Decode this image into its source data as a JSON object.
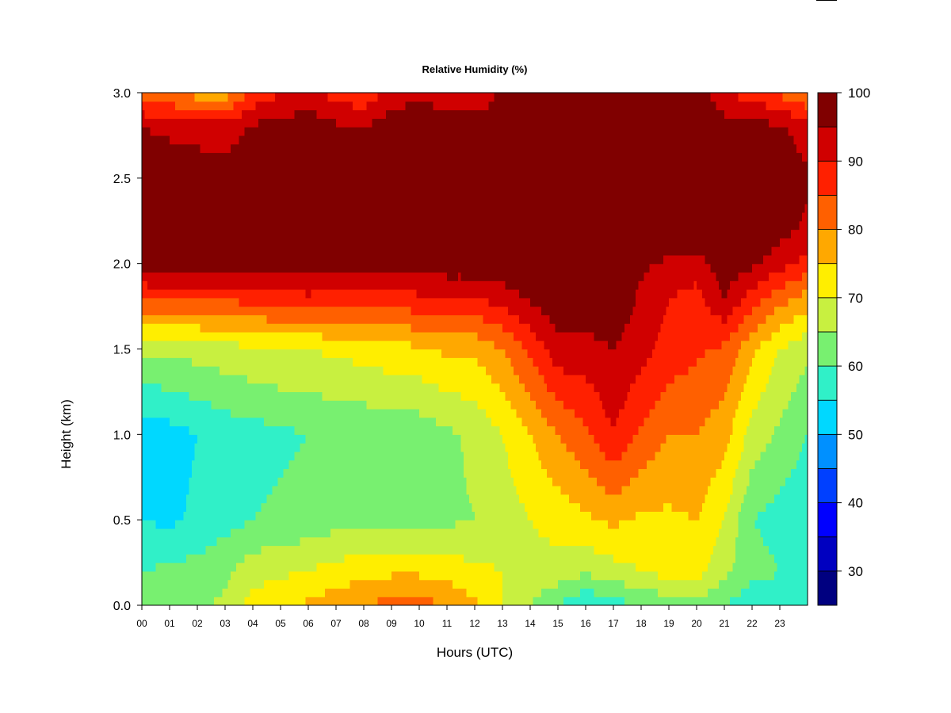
{
  "chart_data": {
    "type": "heatmap",
    "title": "Relative Humidity (%)",
    "xlabel": "Hours (UTC)",
    "ylabel": "Height (km)",
    "xlim": [
      0,
      24
    ],
    "ylim": [
      0,
      3
    ],
    "x_ticks": [
      "00",
      "01",
      "02",
      "03",
      "04",
      "05",
      "06",
      "07",
      "08",
      "09",
      "10",
      "11",
      "12",
      "13",
      "14",
      "15",
      "16",
      "17",
      "18",
      "19",
      "20",
      "21",
      "22",
      "23"
    ],
    "y_ticks": [
      "0.0",
      "0.5",
      "1.0",
      "1.5",
      "2.0",
      "2.5",
      "3.0"
    ],
    "colorbar": {
      "min": 25,
      "max": 100,
      "step": 5,
      "tick_labels": [
        "30",
        "40",
        "50",
        "60",
        "70",
        "80",
        "90",
        "100"
      ],
      "colors": [
        "#000080",
        "#0000c0",
        "#0000ff",
        "#0040ff",
        "#0090ff",
        "#00d8ff",
        "#30f0c8",
        "#78f070",
        "#c8f040",
        "#ffee00",
        "#ffa800",
        "#ff6000",
        "#ff2000",
        "#d00000",
        "#800000"
      ]
    },
    "x_hours": [
      0,
      1,
      2,
      3,
      4,
      5,
      6,
      7,
      8,
      9,
      10,
      11,
      12,
      13,
      14,
      15,
      16,
      17,
      18,
      19,
      20,
      21,
      22,
      23,
      24
    ],
    "y_heights_km": [
      0.0,
      0.2,
      0.5,
      1.0,
      1.5,
      1.8,
      2.0,
      2.2,
      2.5,
      2.8,
      3.0
    ],
    "values": [
      [
        62,
        60,
        55,
        52,
        66,
        85,
        98,
        99,
        98,
        95,
        82
      ],
      [
        63,
        61,
        54,
        53,
        66,
        86,
        98,
        99,
        98,
        94,
        80
      ],
      [
        64,
        62,
        56,
        55,
        67,
        86,
        98,
        99,
        98,
        93,
        78
      ],
      [
        66,
        64,
        58,
        57,
        68,
        86,
        98,
        99,
        98,
        92,
        77
      ],
      [
        72,
        68,
        60,
        58,
        69,
        87,
        98,
        99,
        99,
        96,
        86
      ],
      [
        74,
        69,
        61,
        59,
        70,
        88,
        98,
        99,
        99,
        97,
        90
      ],
      [
        76,
        70,
        62,
        60,
        70,
        89,
        98,
        99,
        99,
        98,
        92
      ],
      [
        78,
        72,
        63,
        61,
        71,
        88,
        98,
        99,
        98,
        96,
        88
      ],
      [
        80,
        73,
        63,
        61,
        72,
        88,
        98,
        99,
        98,
        95,
        86
      ],
      [
        82,
        74,
        64,
        62,
        73,
        88,
        98,
        99,
        99,
        98,
        92
      ],
      [
        82,
        74,
        63,
        62,
        74,
        89,
        98,
        99,
        99,
        99,
        94
      ],
      [
        80,
        73,
        64,
        64,
        76,
        90,
        98,
        99,
        99,
        98,
        92
      ],
      [
        76,
        71,
        65,
        66,
        76,
        90,
        98,
        99,
        99,
        98,
        90
      ],
      [
        70,
        70,
        67,
        70,
        80,
        92,
        99,
        99,
        99,
        99,
        96
      ],
      [
        65,
        68,
        70,
        75,
        86,
        96,
        99,
        99,
        99,
        99,
        98
      ],
      [
        60,
        68,
        72,
        80,
        93,
        99,
        99,
        99,
        99,
        99,
        99
      ],
      [
        55,
        66,
        74,
        84,
        93,
        99,
        99,
        99,
        99,
        99,
        99
      ],
      [
        58,
        68,
        76,
        90,
        95,
        99,
        99,
        99,
        99,
        99,
        99
      ],
      [
        60,
        70,
        74,
        84,
        92,
        94,
        96,
        99,
        99,
        99,
        99
      ],
      [
        62,
        72,
        74,
        80,
        88,
        90,
        94,
        99,
        99,
        99,
        99
      ],
      [
        64,
        72,
        75,
        80,
        86,
        88,
        93,
        99,
        99,
        99,
        99
      ],
      [
        60,
        66,
        70,
        77,
        84,
        95,
        98,
        99,
        99,
        98,
        90
      ],
      [
        56,
        62,
        60,
        68,
        76,
        88,
        96,
        99,
        99,
        97,
        88
      ],
      [
        58,
        60,
        58,
        64,
        70,
        82,
        92,
        97,
        99,
        96,
        84
      ],
      [
        60,
        58,
        56,
        60,
        66,
        78,
        88,
        94,
        96,
        92,
        80
      ]
    ]
  }
}
